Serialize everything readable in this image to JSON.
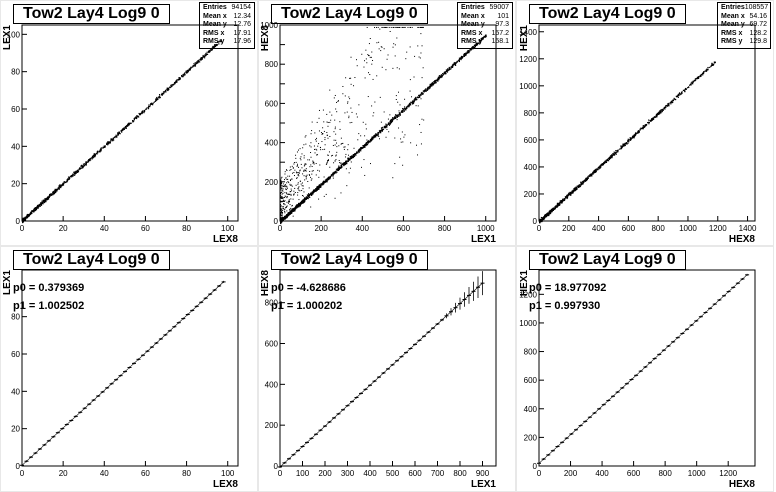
{
  "chart_data": [
    {
      "type": "scatter",
      "title": "Tow2 Lay4 Log9 0",
      "xlabel": "LEX8",
      "ylabel": "LEX1",
      "xlim": [
        0,
        105
      ],
      "ylim": [
        0,
        105
      ],
      "xticks": [
        0,
        20,
        40,
        60,
        80,
        100
      ],
      "yticks": [
        0,
        20,
        40,
        60,
        80,
        100
      ],
      "trend": {
        "slope": 1.0,
        "intercept": 0.4,
        "xmin": 0,
        "xmax": 97
      },
      "stats": [
        {
          "label": "Entries",
          "value": "94154"
        },
        {
          "label": "Mean x",
          "value": "12.34"
        },
        {
          "label": "Mean y",
          "value": "12.76"
        },
        {
          "label": "RMS x",
          "value": "17.91"
        },
        {
          "label": "RMS y",
          "value": "17.96"
        }
      ]
    },
    {
      "type": "scatter",
      "title": "Tow2 Lay4 Log9 0",
      "xlabel": "LEX1",
      "ylabel": "HEX8",
      "xlim": [
        0,
        1050
      ],
      "ylim": [
        0,
        1000
      ],
      "xticks": [
        0,
        200,
        400,
        600,
        800,
        1000
      ],
      "yticks": [
        0,
        100,
        200,
        300,
        400,
        500,
        600,
        700,
        800,
        900,
        1000
      ],
      "yticklabels": [
        0,
        200,
        400,
        600,
        800,
        1000
      ],
      "trend": {
        "slope": 0.95,
        "intercept": 0,
        "xmin": 0,
        "xmax": 1000
      },
      "stats": [
        {
          "label": "Entries",
          "value": "59007"
        },
        {
          "label": "Mean x",
          "value": "101"
        },
        {
          "label": "Mean y",
          "value": "97.3"
        },
        {
          "label": "RMS x",
          "value": "157.2"
        },
        {
          "label": "RMS y",
          "value": "158.1"
        }
      ]
    },
    {
      "type": "scatter",
      "title": "Tow2 Lay4 Log9 0",
      "xlabel": "HEX8",
      "ylabel": "HEX1",
      "xlim": [
        0,
        1450
      ],
      "ylim": [
        0,
        1450
      ],
      "xticks": [
        0,
        200,
        400,
        600,
        800,
        1000,
        1200,
        1400
      ],
      "yticks": [
        0,
        200,
        400,
        600,
        800,
        1000,
        1200,
        1400
      ],
      "trend": {
        "slope": 1.0,
        "intercept": 0,
        "xmin": 0,
        "xmax": 1180
      },
      "stats": [
        {
          "label": "Entries",
          "value": "108557"
        },
        {
          "label": "Mean x",
          "value": "54.16"
        },
        {
          "label": "Mean y",
          "value": "69.72"
        },
        {
          "label": "RMS x",
          "value": "128.2"
        },
        {
          "label": "RMS y",
          "value": "129.8"
        }
      ]
    },
    {
      "type": "line",
      "title": "Tow2 Lay4 Log9 0",
      "xlabel": "LEX8",
      "ylabel": "LEX1",
      "xlim": [
        0,
        105
      ],
      "ylim": [
        0,
        105
      ],
      "xticks": [
        0,
        20,
        40,
        60,
        80,
        100
      ],
      "yticks": [
        0,
        20,
        40,
        60,
        80
      ],
      "fit": {
        "p0_label": "p0 = 0.379369",
        "p1_label": "p1 = 1.002502",
        "p0": 0.379369,
        "p1": 1.002502,
        "xmin": 0,
        "xmax": 98
      }
    },
    {
      "type": "line",
      "title": "Tow2 Lay4 Log9 0",
      "xlabel": "LEX1",
      "ylabel": "HEX8",
      "xlim": [
        0,
        960
      ],
      "ylim": [
        0,
        960
      ],
      "xticks": [
        0,
        100,
        200,
        300,
        400,
        500,
        600,
        700,
        800,
        900
      ],
      "yticks": [
        0,
        200,
        400,
        600,
        800
      ],
      "fit": {
        "p0_label": "p0 = -4.628686",
        "p1_label": "p1 = 1.000202",
        "p0": -4.628686,
        "p1": 1.000202,
        "xmin": 0,
        "xmax": 900
      }
    },
    {
      "type": "line",
      "title": "Tow2 Lay4 Log9 0",
      "xlabel": "HEX8",
      "ylabel": "HEX1",
      "xlim": [
        0,
        1370
      ],
      "ylim": [
        0,
        1370
      ],
      "xticks": [
        0,
        200,
        400,
        600,
        800,
        1000,
        1200
      ],
      "yticks": [
        0,
        200,
        400,
        600,
        800,
        1000,
        1200
      ],
      "fit": {
        "p0_label": "p0 = 18.977092",
        "p1_label": "p1 = 0.997930",
        "p0": 18.977092,
        "p1": 0.99793,
        "xmin": 0,
        "xmax": 1320
      }
    }
  ]
}
